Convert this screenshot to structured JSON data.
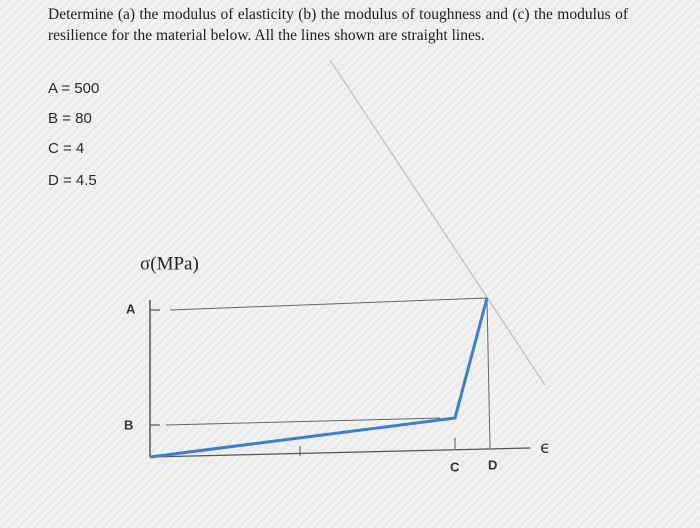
{
  "problem": {
    "text": "Determine (a) the modulus of elasticity (b) the modulus of toughness and (c) the modulus of resilience for the material below. All the lines shown are straight lines.",
    "givens": [
      "A = 500",
      "B = 80",
      "C = 4",
      "D = 4.5"
    ]
  },
  "figure": {
    "y_axis_label": "σ(MPa)",
    "x_axis_label": "ϵ",
    "labels": [
      "A",
      "B",
      "C",
      "D"
    ]
  }
}
